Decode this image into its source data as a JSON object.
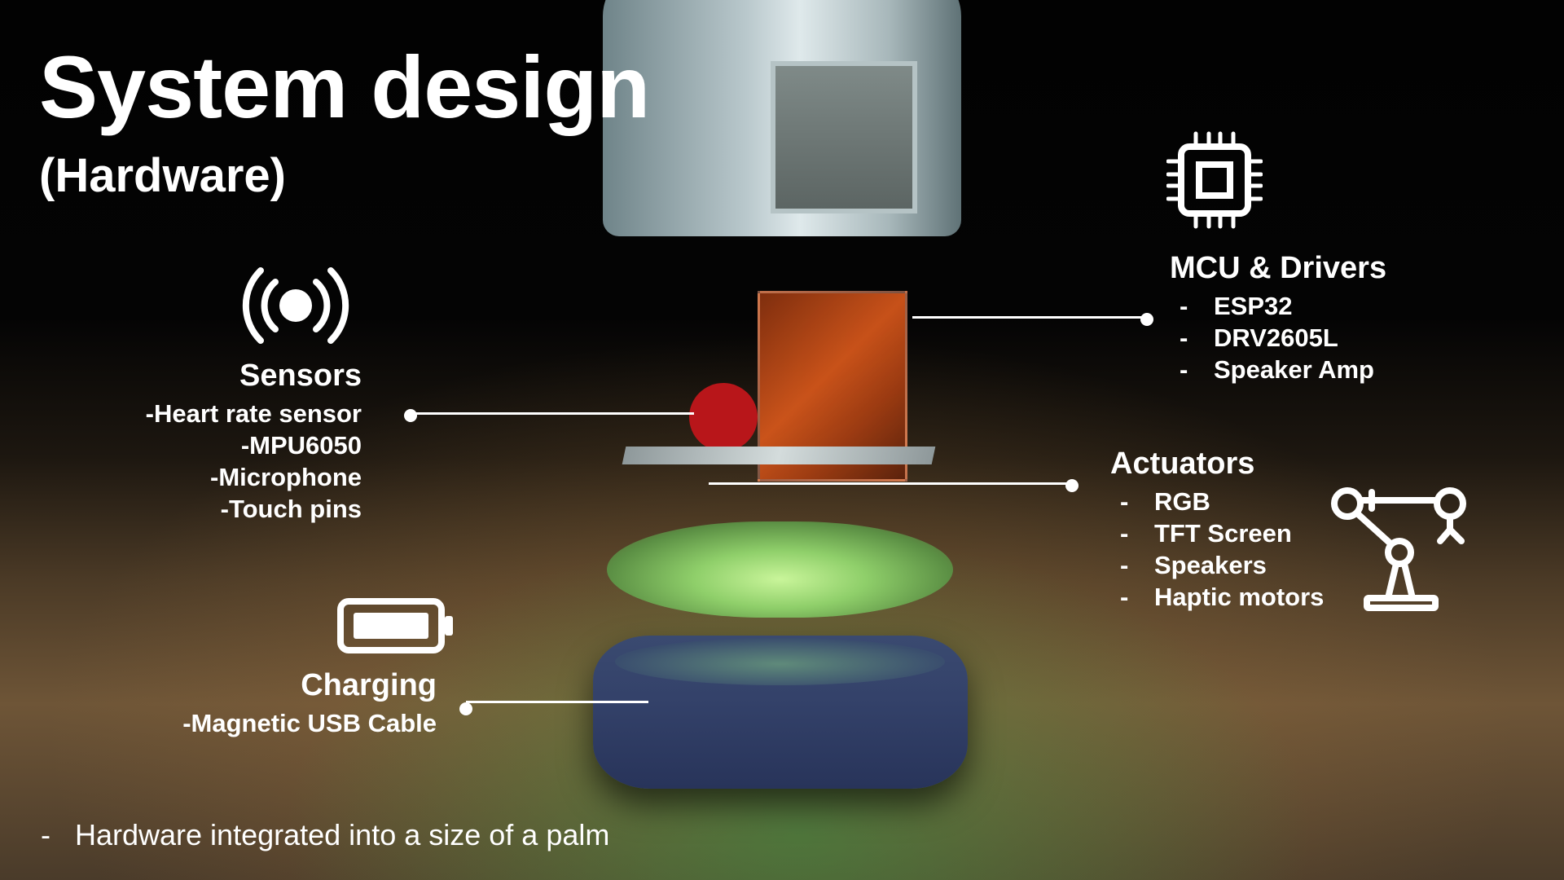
{
  "slide": {
    "title": "System design",
    "subtitle": "(Hardware)"
  },
  "sensors": {
    "heading": "Sensors",
    "icon": "broadcast-icon",
    "items": [
      {
        "dash": "-",
        "label": "Heart rate sensor"
      },
      {
        "dash": "-",
        "label": "MPU6050"
      },
      {
        "dash": "-",
        "label": "Microphone"
      },
      {
        "dash": "-",
        "label": "Touch pins"
      }
    ]
  },
  "mcu": {
    "heading": "MCU & Drivers",
    "icon": "chip-icon",
    "items": [
      {
        "dash": "-",
        "label": "ESP32"
      },
      {
        "dash": "-",
        "label": "DRV2605L"
      },
      {
        "dash": "-",
        "label": "Speaker Amp"
      }
    ]
  },
  "actuators": {
    "heading": "Actuators",
    "icon": "robot-arm-icon",
    "items": [
      {
        "dash": "-",
        "label": "RGB"
      },
      {
        "dash": "-",
        "label": "TFT Screen"
      },
      {
        "dash": "-",
        "label": "Speakers"
      },
      {
        "dash": "-",
        "label": "Haptic motors"
      }
    ]
  },
  "charging": {
    "heading": "Charging",
    "icon": "battery-icon",
    "items": [
      {
        "dash": "-",
        "label": "Magnetic USB Cable"
      }
    ]
  },
  "footnote": {
    "dash": "-",
    "text": "Hardware integrated into a size of a palm"
  },
  "colors": {
    "text": "#ffffff",
    "background_top": "#020202",
    "table_wood": "#6e5537",
    "base_blue": "#34426a",
    "pcb_orange": "#d8581b",
    "glow_green": "#8fcf6a"
  }
}
